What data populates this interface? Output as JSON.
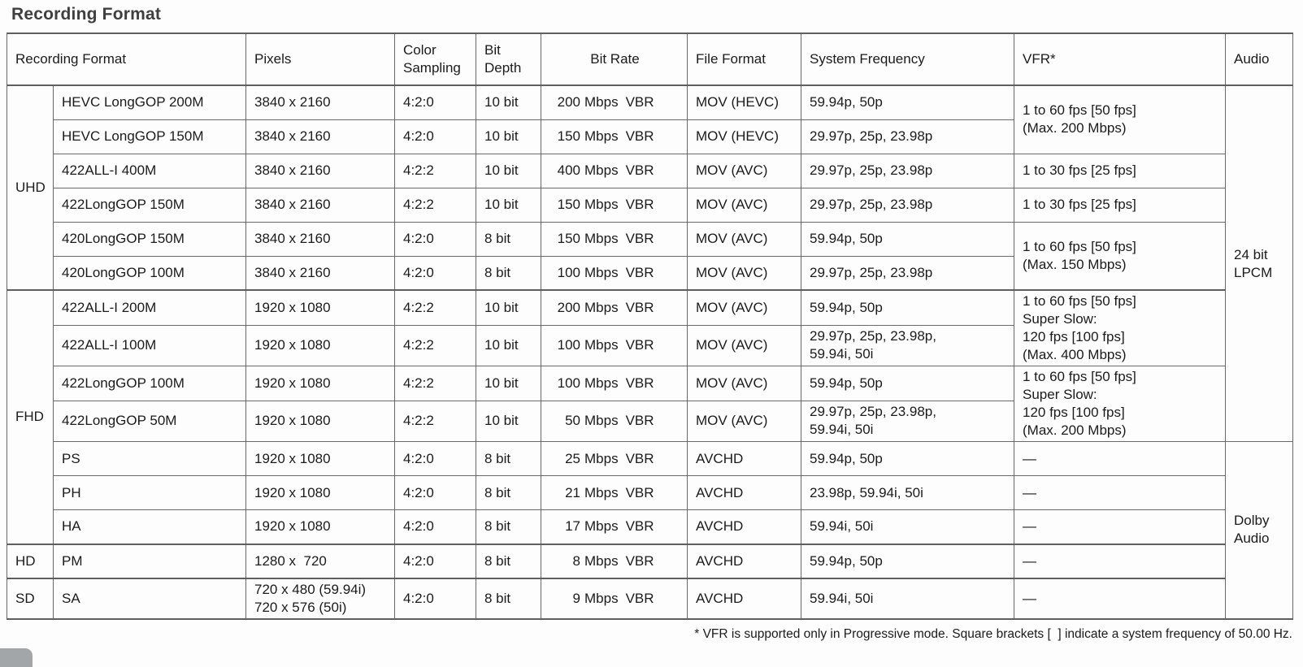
{
  "page": {
    "title": "Recording Format",
    "footnote": "* VFR is supported only in Progressive mode. Square brackets [  ] indicate a system frequency of 50.00 Hz."
  },
  "colors": {
    "border": "#696969",
    "section_border": "#5f5f5f",
    "text": "#1b1b1b",
    "title": "#3f3f3f",
    "background": "#fdfdfd",
    "corner_shape": "#a2a6a8"
  },
  "table": {
    "columns": [
      "group",
      "format",
      "pixels",
      "color",
      "depth",
      "rate",
      "file",
      "freq",
      "vfr",
      "audio"
    ],
    "headers": [
      {
        "label": "Recording Format",
        "colspan": 2,
        "col": "format"
      },
      {
        "label": "Pixels",
        "col": "pixels"
      },
      {
        "label": "Color\nSampling",
        "col": "color"
      },
      {
        "label": "Bit\nDepth",
        "col": "depth"
      },
      {
        "label": "Bit Rate",
        "col": "rate",
        "align": "center"
      },
      {
        "label": "File Format",
        "col": "file"
      },
      {
        "label": "System Frequency",
        "col": "freq"
      },
      {
        "label": "VFR*",
        "col": "vfr"
      },
      {
        "label": "Audio",
        "col": "audio"
      }
    ],
    "rows": [
      {
        "section": false,
        "cells": [
          {
            "col": "group",
            "text": "UHD",
            "rowspan": 6
          },
          {
            "col": "format",
            "text": "HEVC LongGOP 200M"
          },
          {
            "col": "pixels",
            "text": "3840 x 2160"
          },
          {
            "col": "color",
            "text": "4:2:0"
          },
          {
            "col": "depth",
            "text": "10 bit"
          },
          {
            "col": "rate",
            "text": "200 Mbps VBR"
          },
          {
            "col": "file",
            "text": "MOV (HEVC)"
          },
          {
            "col": "freq",
            "text": "59.94p, 50p"
          },
          {
            "col": "vfr",
            "text": "1 to 60 fps [50 fps]\n(Max. 200 Mbps)",
            "rowspan": 2
          },
          {
            "col": "audio",
            "text": "24 bit\nLPCM",
            "rowspan": 10
          }
        ]
      },
      {
        "section": false,
        "cells": [
          {
            "col": "format",
            "text": "HEVC LongGOP 150M"
          },
          {
            "col": "pixels",
            "text": "3840 x 2160"
          },
          {
            "col": "color",
            "text": "4:2:0"
          },
          {
            "col": "depth",
            "text": "10 bit"
          },
          {
            "col": "rate",
            "text": "150 Mbps VBR"
          },
          {
            "col": "file",
            "text": "MOV (HEVC)"
          },
          {
            "col": "freq",
            "text": "29.97p, 25p, 23.98p"
          }
        ]
      },
      {
        "section": false,
        "cells": [
          {
            "col": "format",
            "text": "422ALL-I 400M"
          },
          {
            "col": "pixels",
            "text": "3840 x 2160"
          },
          {
            "col": "color",
            "text": "4:2:2"
          },
          {
            "col": "depth",
            "text": "10 bit"
          },
          {
            "col": "rate",
            "text": "400 Mbps VBR"
          },
          {
            "col": "file",
            "text": "MOV (AVC)"
          },
          {
            "col": "freq",
            "text": "29.97p, 25p, 23.98p"
          },
          {
            "col": "vfr",
            "text": "1 to 30 fps [25 fps]"
          }
        ]
      },
      {
        "section": false,
        "cells": [
          {
            "col": "format",
            "text": "422LongGOP 150M"
          },
          {
            "col": "pixels",
            "text": "3840 x 2160"
          },
          {
            "col": "color",
            "text": "4:2:2"
          },
          {
            "col": "depth",
            "text": "10 bit"
          },
          {
            "col": "rate",
            "text": "150 Mbps VBR"
          },
          {
            "col": "file",
            "text": "MOV (AVC)"
          },
          {
            "col": "freq",
            "text": "29.97p, 25p, 23.98p"
          },
          {
            "col": "vfr",
            "text": "1 to 30 fps [25 fps]"
          }
        ]
      },
      {
        "section": false,
        "cells": [
          {
            "col": "format",
            "text": "420LongGOP 150M"
          },
          {
            "col": "pixels",
            "text": "3840 x 2160"
          },
          {
            "col": "color",
            "text": "4:2:0"
          },
          {
            "col": "depth",
            "text": "8 bit"
          },
          {
            "col": "rate",
            "text": "150 Mbps VBR"
          },
          {
            "col": "file",
            "text": "MOV (AVC)"
          },
          {
            "col": "freq",
            "text": "59.94p, 50p"
          },
          {
            "col": "vfr",
            "text": "1 to 60 fps [50 fps]\n(Max. 150 Mbps)",
            "rowspan": 2
          }
        ]
      },
      {
        "section": false,
        "cells": [
          {
            "col": "format",
            "text": "420LongGOP 100M"
          },
          {
            "col": "pixels",
            "text": "3840 x 2160"
          },
          {
            "col": "color",
            "text": "4:2:0"
          },
          {
            "col": "depth",
            "text": "8 bit"
          },
          {
            "col": "rate",
            "text": "100 Mbps VBR"
          },
          {
            "col": "file",
            "text": "MOV (AVC)"
          },
          {
            "col": "freq",
            "text": "29.97p, 25p, 23.98p"
          }
        ]
      },
      {
        "section": true,
        "cells": [
          {
            "col": "group",
            "text": "FHD",
            "rowspan": 7
          },
          {
            "col": "format",
            "text": "422ALL-I 200M"
          },
          {
            "col": "pixels",
            "text": "1920 x 1080"
          },
          {
            "col": "color",
            "text": "4:2:2"
          },
          {
            "col": "depth",
            "text": "10 bit"
          },
          {
            "col": "rate",
            "text": "200 Mbps VBR"
          },
          {
            "col": "file",
            "text": "MOV (AVC)"
          },
          {
            "col": "freq",
            "text": "59.94p, 50p"
          },
          {
            "col": "vfr",
            "text": "1 to 60 fps [50 fps]\nSuper Slow:\n120 fps [100 fps]\n(Max. 400 Mbps)",
            "rowspan": 2
          }
        ]
      },
      {
        "section": false,
        "cells": [
          {
            "col": "format",
            "text": "422ALL-I 100M"
          },
          {
            "col": "pixels",
            "text": "1920 x 1080"
          },
          {
            "col": "color",
            "text": "4:2:2"
          },
          {
            "col": "depth",
            "text": "10 bit"
          },
          {
            "col": "rate",
            "text": "100 Mbps VBR"
          },
          {
            "col": "file",
            "text": "MOV (AVC)"
          },
          {
            "col": "freq",
            "text": "29.97p, 25p, 23.98p,\n59.94i, 50i"
          }
        ]
      },
      {
        "section": false,
        "cells": [
          {
            "col": "format",
            "text": "422LongGOP 100M"
          },
          {
            "col": "pixels",
            "text": "1920 x 1080"
          },
          {
            "col": "color",
            "text": "4:2:2"
          },
          {
            "col": "depth",
            "text": "10 bit"
          },
          {
            "col": "rate",
            "text": "100 Mbps VBR"
          },
          {
            "col": "file",
            "text": "MOV (AVC)"
          },
          {
            "col": "freq",
            "text": "59.94p, 50p"
          },
          {
            "col": "vfr",
            "text": "1 to 60 fps [50 fps]\nSuper Slow:\n120 fps [100 fps]\n(Max. 200 Mbps)",
            "rowspan": 2
          }
        ]
      },
      {
        "section": false,
        "cells": [
          {
            "col": "format",
            "text": "422LongGOP 50M"
          },
          {
            "col": "pixels",
            "text": "1920 x 1080"
          },
          {
            "col": "color",
            "text": "4:2:2"
          },
          {
            "col": "depth",
            "text": "10 bit"
          },
          {
            "col": "rate",
            "text": "50 Mbps VBR"
          },
          {
            "col": "file",
            "text": "MOV (AVC)"
          },
          {
            "col": "freq",
            "text": "29.97p, 25p, 23.98p,\n59.94i, 50i"
          }
        ]
      },
      {
        "section": false,
        "cells": [
          {
            "col": "format",
            "text": "PS"
          },
          {
            "col": "pixels",
            "text": "1920 x 1080"
          },
          {
            "col": "color",
            "text": "4:2:0"
          },
          {
            "col": "depth",
            "text": "8 bit"
          },
          {
            "col": "rate",
            "text": "25 Mbps VBR"
          },
          {
            "col": "file",
            "text": "AVCHD"
          },
          {
            "col": "freq",
            "text": "59.94p, 50p"
          },
          {
            "col": "vfr",
            "text": "—"
          },
          {
            "col": "audio",
            "text": "Dolby\nAudio",
            "rowspan": 5
          }
        ]
      },
      {
        "section": false,
        "cells": [
          {
            "col": "format",
            "text": "PH"
          },
          {
            "col": "pixels",
            "text": "1920 x 1080"
          },
          {
            "col": "color",
            "text": "4:2:0"
          },
          {
            "col": "depth",
            "text": "8 bit"
          },
          {
            "col": "rate",
            "text": "21 Mbps VBR"
          },
          {
            "col": "file",
            "text": "AVCHD"
          },
          {
            "col": "freq",
            "text": "23.98p, 59.94i, 50i"
          },
          {
            "col": "vfr",
            "text": "—"
          }
        ]
      },
      {
        "section": false,
        "cells": [
          {
            "col": "format",
            "text": "HA"
          },
          {
            "col": "pixels",
            "text": "1920 x 1080"
          },
          {
            "col": "color",
            "text": "4:2:0"
          },
          {
            "col": "depth",
            "text": "8 bit"
          },
          {
            "col": "rate",
            "text": "17 Mbps VBR"
          },
          {
            "col": "file",
            "text": "AVCHD"
          },
          {
            "col": "freq",
            "text": "59.94i, 50i"
          },
          {
            "col": "vfr",
            "text": "—"
          }
        ]
      },
      {
        "section": true,
        "cells": [
          {
            "col": "group",
            "text": "HD"
          },
          {
            "col": "format",
            "text": "PM"
          },
          {
            "col": "pixels",
            "text": "1280 x  720"
          },
          {
            "col": "color",
            "text": "4:2:0"
          },
          {
            "col": "depth",
            "text": "8 bit"
          },
          {
            "col": "rate",
            "text": "8 Mbps VBR"
          },
          {
            "col": "file",
            "text": "AVCHD"
          },
          {
            "col": "freq",
            "text": "59.94p, 50p"
          },
          {
            "col": "vfr",
            "text": "—"
          }
        ]
      },
      {
        "section": true,
        "cells": [
          {
            "col": "group",
            "text": "SD"
          },
          {
            "col": "format",
            "text": "SA"
          },
          {
            "col": "pixels",
            "text": "720 x 480 (59.94i)\n720 x 576 (50i)"
          },
          {
            "col": "color",
            "text": "4:2:0"
          },
          {
            "col": "depth",
            "text": "8 bit"
          },
          {
            "col": "rate",
            "text": "9 Mbps VBR"
          },
          {
            "col": "file",
            "text": "AVCHD"
          },
          {
            "col": "freq",
            "text": "59.94i, 50i"
          },
          {
            "col": "vfr",
            "text": "—"
          }
        ]
      }
    ]
  }
}
